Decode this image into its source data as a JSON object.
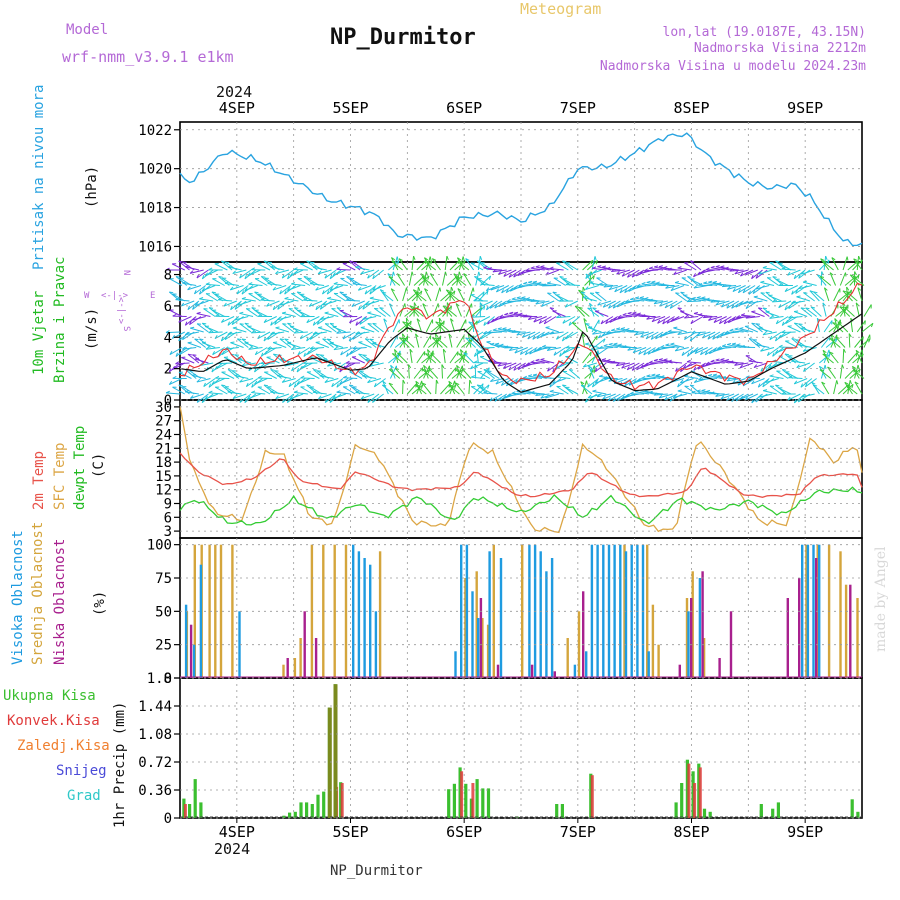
{
  "header": {
    "product_label": "Meteogram",
    "station": "NP_Durmitor",
    "model_label": "Model",
    "model_name": "wrf-nmm_v3.9.1 e1km",
    "coords": "lon,lat (19.0187E, 43.15N)",
    "elevation": "Nadmorska Visina 2212m",
    "model_elevation": "Nadmorska Visina u modelu 2024.23m",
    "footer_station": "NP_Durmitor",
    "watermark": "made by Angel",
    "year": "2024"
  },
  "colors": {
    "pressure": "#29a3e0",
    "temp2m": "#e8534a",
    "sfc_temp": "#dca645",
    "dewpoint": "#33cc33",
    "cloud_high": "#1e9be0",
    "cloud_mid": "#d4a53c",
    "cloud_low": "#a8208e",
    "precip_total": "#3bbf2f",
    "precip_conv": "#e03b3b",
    "precip_frozen": "#f08030",
    "snow": "#4b4bd8",
    "graupel": "#2fc8c8",
    "wind_speed": "#111111",
    "wind_gust": "#e83030",
    "title_block": "#b469d6"
  },
  "panels": {
    "pressure": {
      "label": "Pritisak na nivou mora",
      "unit": "(hPa)"
    },
    "wind": {
      "label1": "10m Vjetar",
      "label2": "Brzina i Pravac",
      "unit": "(m/s)",
      "compass_w": "W",
      "compass_e": "E",
      "compass_n": "N",
      "compass_s": "S",
      "compass_arrow": "<-|->"
    },
    "temp": {
      "label_2m": "2m Temp",
      "label_sfc": "SFC Temp",
      "label_dew": "dewpt Temp",
      "unit": "(C)"
    },
    "cloud": {
      "label_high": "Visoka Oblacnost",
      "label_mid": "Srednja Oblacnost",
      "label_low": "Niska Oblacnost",
      "unit": "(%)"
    },
    "precip": {
      "unit_label": "1hr Precip (mm)",
      "legend": [
        "Ukupna Kisa",
        "Konvek.Kisa",
        "Zaledj.Kisa",
        "Snijeg",
        "Grad"
      ]
    }
  },
  "chart_data": {
    "type": "meteogram",
    "time_axis": {
      "start": "2024-09-03 12:00",
      "end": "2024-09-09 12:00",
      "tick_labels": [
        "4SEP",
        "5SEP",
        "6SEP",
        "7SEP",
        "8SEP",
        "9SEP"
      ],
      "year_label": "2024",
      "step_hours": 1
    },
    "pressure": {
      "ylim": [
        1015.2,
        1022.4
      ],
      "yticks": [
        "1016",
        "1018",
        "1020",
        "1022"
      ],
      "knots_day": [
        0,
        0.1,
        0.4,
        0.7,
        1.0,
        1.3,
        1.6,
        1.75,
        1.9,
        2.2,
        2.5,
        2.8,
        3.0,
        3.25,
        3.5,
        3.75,
        4.0,
        4.25,
        4.45,
        4.65,
        4.8,
        5.0,
        5.2,
        5.4,
        5.55,
        5.7,
        5.85,
        6.0
      ],
      "knots_hpa": [
        1019.6,
        1019.3,
        1020.9,
        1020.4,
        1019.4,
        1018.4,
        1017.9,
        1017.5,
        1016.6,
        1016.4,
        1017.5,
        1017.7,
        1017.3,
        1018.0,
        1020.0,
        1020.1,
        1020.8,
        1021.6,
        1021.8,
        1020.6,
        1020.0,
        1019.3,
        1019.0,
        1019.2,
        1018.5,
        1017.3,
        1016.2,
        1016.1
      ]
    },
    "wind": {
      "ylim": [
        0,
        8.8
      ],
      "yticks": [
        "0",
        "2",
        "4",
        "6",
        "8"
      ],
      "knots_day": [
        0,
        0.2,
        0.4,
        0.6,
        0.9,
        1.2,
        1.5,
        1.65,
        1.85,
        2.0,
        2.2,
        2.5,
        2.65,
        2.85,
        3.0,
        3.25,
        3.45,
        3.55,
        3.8,
        4.0,
        4.2,
        4.5,
        4.8,
        5.0,
        5.2,
        5.5,
        5.8,
        6.0
      ],
      "speed_knots": [
        2.0,
        1.8,
        2.6,
        2.0,
        2.2,
        2.7,
        1.9,
        2.0,
        3.8,
        4.6,
        4.2,
        4.5,
        3.5,
        1.2,
        0.5,
        1.0,
        2.5,
        4.5,
        1.2,
        0.6,
        0.7,
        1.8,
        1.0,
        1.2,
        2.0,
        3.0,
        4.5,
        5.5
      ],
      "gust_knots": [
        1.6,
        2.4,
        3.2,
        2.3,
        2.6,
        2.7,
        1.8,
        2.1,
        4.8,
        6.0,
        5.3,
        6.5,
        3.6,
        1.4,
        1.2,
        1.6,
        3.0,
        3.7,
        1.3,
        0.9,
        1.0,
        2.2,
        1.5,
        1.2,
        2.4,
        4.0,
        6.0,
        7.5
      ]
    },
    "temperature": {
      "ylim": [
        1.5,
        31.5
      ],
      "yticks": [
        "3",
        "6",
        "9",
        "12",
        "15",
        "18",
        "21",
        "24",
        "27",
        "30"
      ],
      "temp2m_knots_day": [
        0,
        0.15,
        0.4,
        0.65,
        0.9,
        1.05,
        1.4,
        1.55,
        1.9,
        2.05,
        2.45,
        2.6,
        2.95,
        3.1,
        3.45,
        3.6,
        3.95,
        4.1,
        4.45,
        4.6,
        4.95,
        5.1,
        5.45,
        5.6,
        5.95,
        6.0
      ],
      "temp2m": [
        20.0,
        16.0,
        13.0,
        14.5,
        19.0,
        14.0,
        12.0,
        16.0,
        12.5,
        12.0,
        12.5,
        16.0,
        11.0,
        10.5,
        12.0,
        16.0,
        11.0,
        10.5,
        11.5,
        17.0,
        11.0,
        10.5,
        11.0,
        15.0,
        15.5,
        12.5
      ],
      "sfc_knots_day": [
        0,
        0.1,
        0.3,
        0.55,
        0.75,
        0.9,
        1.15,
        1.35,
        1.55,
        1.75,
        2.05,
        2.35,
        2.55,
        2.75,
        3.1,
        3.35,
        3.55,
        3.75,
        4.1,
        4.35,
        4.55,
        4.75,
        5.1,
        5.35,
        5.55,
        5.75,
        5.95,
        6.0
      ],
      "sfc": [
        30.0,
        17.0,
        7.0,
        5.5,
        20.0,
        20.0,
        6.0,
        4.5,
        22.0,
        19.0,
        5.0,
        4.0,
        22.0,
        20.0,
        3.5,
        3.0,
        22.0,
        17.0,
        4.0,
        3.0,
        23.0,
        17.0,
        5.0,
        4.5,
        23.5,
        18.0,
        22.0,
        15.0
      ],
      "dew_knots_day": [
        0,
        0.15,
        0.4,
        0.7,
        1.0,
        1.3,
        1.55,
        1.8,
        2.1,
        2.4,
        2.6,
        3.0,
        3.3,
        3.55,
        3.8,
        4.1,
        4.4,
        4.7,
        5.0,
        5.3,
        5.6,
        5.9,
        6.0
      ],
      "dew": [
        8.0,
        10.0,
        5.0,
        4.5,
        10.0,
        5.5,
        9.0,
        6.0,
        10.5,
        5.0,
        10.5,
        7.0,
        10.5,
        6.0,
        10.5,
        4.5,
        10.0,
        7.5,
        9.5,
        6.5,
        11.5,
        12.0,
        11.5
      ]
    },
    "cloud_cover": {
      "ylim": [
        0,
        105
      ],
      "yticks": [
        "0",
        "25",
        "50",
        "75",
        "100"
      ],
      "high": [
        [
          0.03,
          55
        ],
        [
          0.1,
          25
        ],
        [
          0.16,
          85
        ],
        [
          0.5,
          50
        ],
        [
          1.5,
          100
        ],
        [
          1.55,
          95
        ],
        [
          1.6,
          90
        ],
        [
          1.65,
          85
        ],
        [
          1.7,
          50
        ],
        [
          2.4,
          20
        ],
        [
          2.45,
          100
        ],
        [
          2.5,
          100
        ],
        [
          2.55,
          65
        ],
        [
          2.6,
          45
        ],
        [
          2.7,
          95
        ],
        [
          2.8,
          90
        ],
        [
          3.05,
          100
        ],
        [
          3.1,
          100
        ],
        [
          3.15,
          95
        ],
        [
          3.2,
          80
        ],
        [
          3.25,
          90
        ],
        [
          3.45,
          10
        ],
        [
          3.55,
          20
        ],
        [
          3.6,
          100
        ],
        [
          3.65,
          100
        ],
        [
          3.7,
          100
        ],
        [
          3.75,
          100
        ],
        [
          3.8,
          100
        ],
        [
          3.85,
          100
        ],
        [
          3.9,
          95
        ],
        [
          3.95,
          100
        ],
        [
          4.0,
          100
        ],
        [
          4.05,
          100
        ],
        [
          4.1,
          20
        ],
        [
          4.45,
          50
        ],
        [
          4.55,
          75
        ],
        [
          5.45,
          100
        ],
        [
          5.5,
          100
        ],
        [
          5.55,
          100
        ],
        [
          5.6,
          100
        ]
      ],
      "mid": [
        [
          0.05,
          50
        ],
        [
          0.12,
          100
        ],
        [
          0.18,
          100
        ],
        [
          0.25,
          100
        ],
        [
          0.3,
          100
        ],
        [
          0.35,
          100
        ],
        [
          0.45,
          100
        ],
        [
          0.9,
          10
        ],
        [
          1.0,
          15
        ],
        [
          1.05,
          30
        ],
        [
          1.15,
          100
        ],
        [
          1.25,
          100
        ],
        [
          1.35,
          100
        ],
        [
          1.45,
          100
        ],
        [
          1.75,
          95
        ],
        [
          2.5,
          75
        ],
        [
          2.6,
          80
        ],
        [
          2.65,
          45
        ],
        [
          2.7,
          40
        ],
        [
          2.75,
          100
        ],
        [
          3.0,
          100
        ],
        [
          3.4,
          30
        ],
        [
          3.5,
          50
        ],
        [
          3.9,
          100
        ],
        [
          4.1,
          100
        ],
        [
          4.15,
          55
        ],
        [
          4.2,
          25
        ],
        [
          4.45,
          60
        ],
        [
          4.5,
          80
        ],
        [
          4.6,
          30
        ],
        [
          5.5,
          100
        ],
        [
          5.6,
          100
        ],
        [
          5.7,
          100
        ],
        [
          5.8,
          95
        ],
        [
          5.85,
          70
        ],
        [
          5.95,
          60
        ]
      ],
      "low": [
        [
          0.1,
          40
        ],
        [
          0.95,
          15
        ],
        [
          1.1,
          50
        ],
        [
          1.2,
          30
        ],
        [
          2.65,
          60
        ],
        [
          2.8,
          10
        ],
        [
          3.1,
          10
        ],
        [
          3.3,
          5
        ],
        [
          3.55,
          65
        ],
        [
          4.4,
          10
        ],
        [
          4.5,
          60
        ],
        [
          4.6,
          80
        ],
        [
          4.75,
          15
        ],
        [
          4.85,
          50
        ],
        [
          5.35,
          60
        ],
        [
          5.45,
          75
        ],
        [
          5.6,
          90
        ],
        [
          5.9,
          70
        ]
      ]
    },
    "precipitation": {
      "ylim": [
        0,
        1.8
      ],
      "yticks": [
        "0",
        "0.36",
        "0.72",
        "1.08",
        "1.44",
        "1.8"
      ],
      "total": [
        [
          0.02,
          0.25
        ],
        [
          0.07,
          0.18
        ],
        [
          0.12,
          0.5
        ],
        [
          0.17,
          0.2
        ],
        [
          0.9,
          0.03
        ],
        [
          0.95,
          0.07
        ],
        [
          1.0,
          0.08
        ],
        [
          1.05,
          0.2
        ],
        [
          1.1,
          0.2
        ],
        [
          1.15,
          0.18
        ],
        [
          1.2,
          0.3
        ],
        [
          1.25,
          0.34
        ],
        [
          1.3,
          1.42
        ],
        [
          1.35,
          1.72
        ],
        [
          1.4,
          0.46
        ],
        [
          2.35,
          0.37
        ],
        [
          2.4,
          0.44
        ],
        [
          2.45,
          0.65
        ],
        [
          2.5,
          0.44
        ],
        [
          2.55,
          0.25
        ],
        [
          2.6,
          0.5
        ],
        [
          2.65,
          0.38
        ],
        [
          2.7,
          0.38
        ],
        [
          2.95,
          0.02
        ],
        [
          3.3,
          0.18
        ],
        [
          3.35,
          0.18
        ],
        [
          3.6,
          0.57
        ],
        [
          4.35,
          0.2
        ],
        [
          4.4,
          0.45
        ],
        [
          4.45,
          0.75
        ],
        [
          4.5,
          0.6
        ],
        [
          4.55,
          0.7
        ],
        [
          4.6,
          0.12
        ],
        [
          4.65,
          0.08
        ],
        [
          5.1,
          0.1
        ],
        [
          5.1,
          0.18
        ],
        [
          5.2,
          0.12
        ],
        [
          5.25,
          0.2
        ],
        [
          5.9,
          0.24
        ],
        [
          5.95,
          0.08
        ]
      ],
      "convective": [
        [
          0.02,
          0.18
        ],
        [
          1.35,
          0.4
        ],
        [
          1.4,
          0.45
        ],
        [
          2.45,
          0.6
        ],
        [
          2.55,
          0.45
        ],
        [
          3.6,
          0.55
        ],
        [
          4.45,
          0.7
        ],
        [
          4.5,
          0.45
        ],
        [
          4.55,
          0.65
        ]
      ]
    }
  }
}
